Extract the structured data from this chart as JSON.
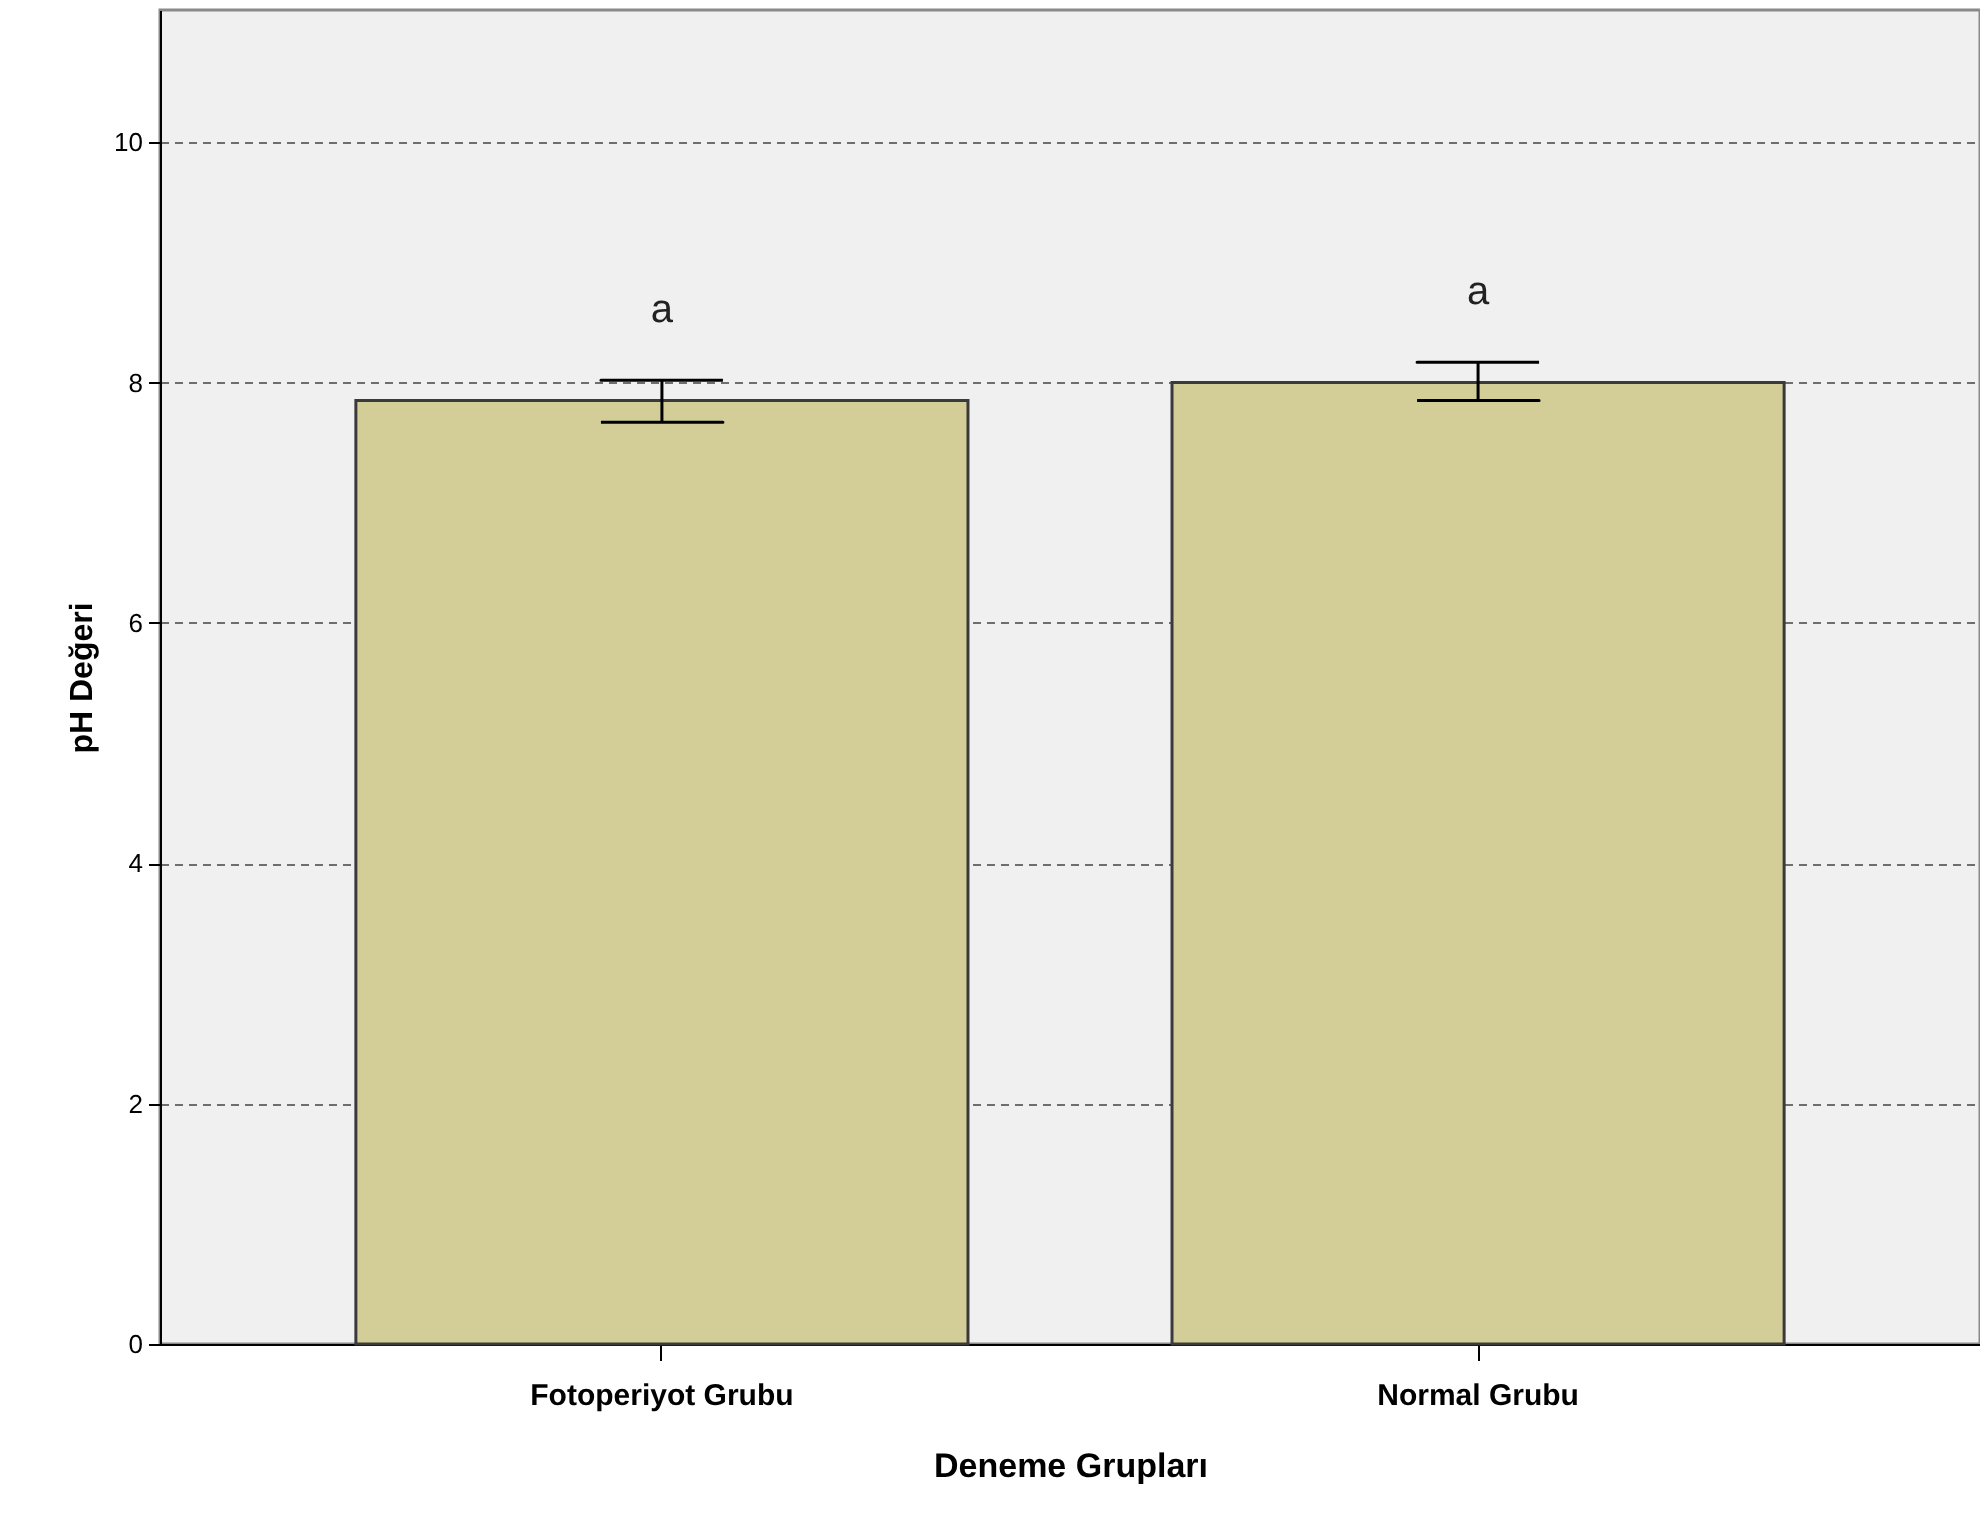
{
  "chart_data": {
    "type": "bar",
    "xlabel": "Deneme Grupları",
    "ylabel": "pH Değeri",
    "categories": [
      "Fotoperiyot Grubu",
      "Normal Grubu"
    ],
    "values": [
      7.85,
      8.0
    ],
    "color": "#d3ce98",
    "errors": [
      [
        7.67,
        8.02
      ],
      [
        7.85,
        8.17
      ]
    ],
    "ylim": [
      0,
      11.1
    ],
    "yticks": [
      0,
      2,
      4,
      6,
      8,
      10
    ],
    "grid": "y",
    "annotations": [
      "a",
      "a"
    ]
  }
}
